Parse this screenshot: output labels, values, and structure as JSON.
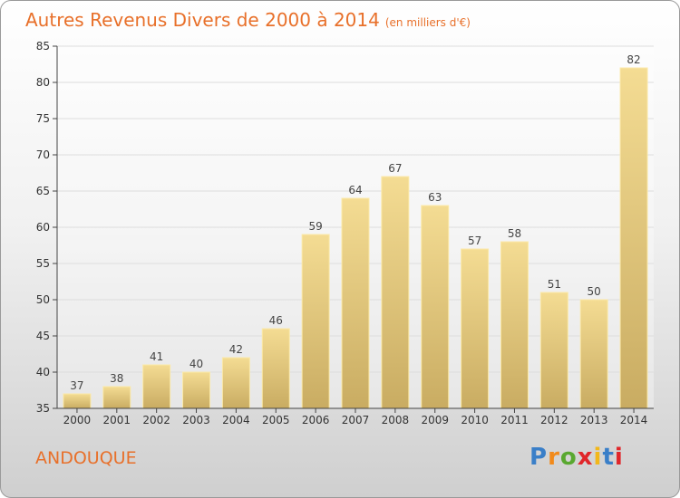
{
  "title": "Autres Revenus Divers de 2000 à 2014",
  "title_unit": "(en milliers d'€)",
  "commune": "ANDOUQUE",
  "logo": {
    "text": "Proxiti",
    "colors": [
      "#3a7fc8",
      "#f28a1a",
      "#59a830",
      "#e0262a",
      "#f2b71a",
      "#3a7fc8",
      "#e0262a"
    ]
  },
  "colors": {
    "accent": "#e8702a",
    "bar_light": "#f4dc93",
    "bar_dark": "#c9ac62",
    "axis": "#444444",
    "grid": "#dddddd"
  },
  "chart_data": {
    "type": "bar",
    "categories": [
      "2000",
      "2001",
      "2002",
      "2003",
      "2004",
      "2005",
      "2006",
      "2007",
      "2008",
      "2009",
      "2010",
      "2011",
      "2012",
      "2013",
      "2014"
    ],
    "values": [
      37,
      38,
      41,
      40,
      42,
      46,
      59,
      64,
      67,
      63,
      57,
      58,
      51,
      50,
      82
    ],
    "ylim": [
      35,
      85
    ],
    "yticks": [
      35,
      40,
      45,
      50,
      55,
      60,
      65,
      70,
      75,
      80,
      85
    ],
    "grid": true,
    "data_labels": true,
    "xlabel": "",
    "ylabel": ""
  }
}
